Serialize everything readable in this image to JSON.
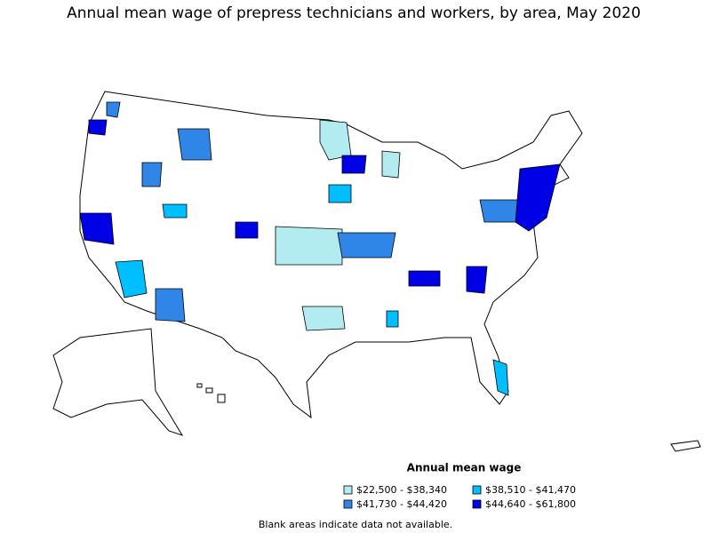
{
  "title": "Annual mean wage of prepress technicians and workers, by area, May 2020",
  "legend": {
    "title": "Annual mean wage",
    "items": [
      {
        "label": "$22,500 - $38,340",
        "color": "#b3ecf0"
      },
      {
        "label": "$38,510 - $41,470",
        "color": "#00bfff"
      },
      {
        "label": "$41,730 - $44,420",
        "color": "#2f86e6"
      },
      {
        "label": "$44,640 - $61,800",
        "color": "#0000e6"
      }
    ]
  },
  "footnote": "Blank areas indicate data not available."
}
